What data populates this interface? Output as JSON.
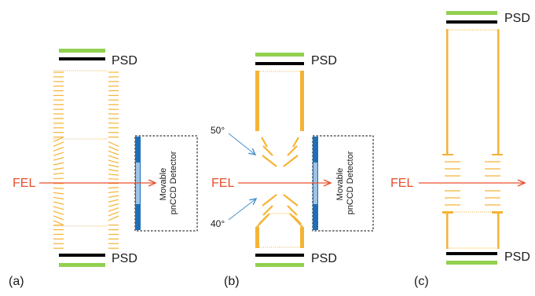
{
  "colors": {
    "psd_green": "#92d050",
    "psd_black": "#000000",
    "electrode": "#f5b335",
    "fel_beam": "#e8502e",
    "pnccd_dark": "#1f6fb5",
    "pnccd_light": "#9dc3e6",
    "angle_arrow": "#4a90c8"
  },
  "labels": {
    "psd": "PSD",
    "fel": "FEL",
    "detector_line1": "Movable",
    "detector_line2": "pnCCD Detector"
  },
  "panels": [
    {
      "tag": "(a)"
    },
    {
      "tag": "(b)",
      "angles": [
        "50°",
        "40°"
      ]
    },
    {
      "tag": "(c)"
    }
  ]
}
